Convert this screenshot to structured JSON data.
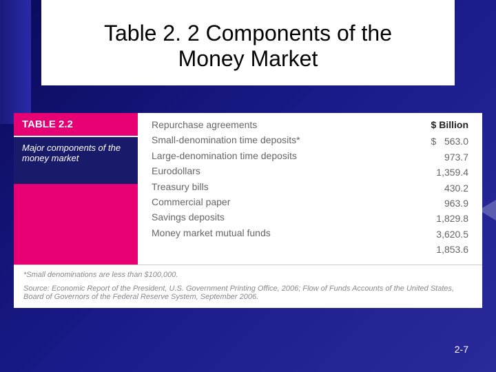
{
  "title": "Table 2. 2 Components of the Money Market",
  "table": {
    "label_header": "TABLE 2.2",
    "label_sub": "Major components of the money market",
    "value_header": "$ Billion",
    "currency_prefix": "$",
    "rows": [
      {
        "name": "Repurchase agreements",
        "value": "563.0"
      },
      {
        "name": "Small-denomination time deposits*",
        "value": "973.7"
      },
      {
        "name": "Large-denomination time deposits",
        "value": "1,359.4"
      },
      {
        "name": "Eurodollars",
        "value": "430.2"
      },
      {
        "name": "Treasury bills",
        "value": "963.9"
      },
      {
        "name": "Commercial paper",
        "value": "1,829.8"
      },
      {
        "name": "Savings deposits",
        "value": "3,620.5"
      },
      {
        "name": "Money market mutual funds",
        "value": "1,853.6"
      }
    ]
  },
  "footnote": "*Small denominations are less than $100,000.",
  "source": "Source: Economic Report of the President, U.S. Government Printing Office, 2006; Flow of Funds Accounts of the United States, Board of Governors of the Federal Reserve System, September 2006.",
  "page_number": "2-7",
  "colors": {
    "accent_pink": "#e60073",
    "dark_blue": "#1a1a6a"
  }
}
